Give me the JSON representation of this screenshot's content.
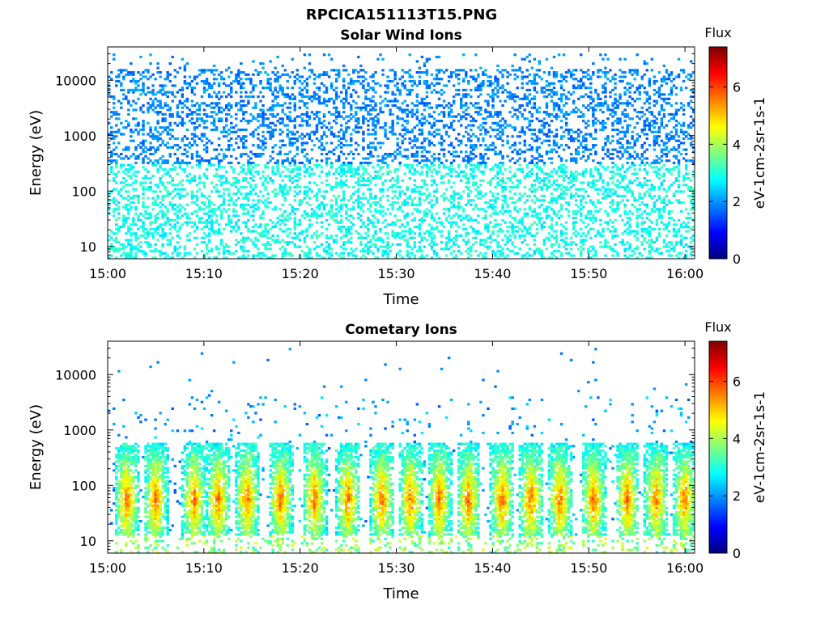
{
  "figure": {
    "title": "RPCICA151113T15.PNG"
  },
  "chart_data": [
    {
      "type": "heatmap",
      "title": "Solar Wind Ions",
      "xlabel": "Time",
      "ylabel": "Energy (eV)",
      "x_ticks": [
        "15:00",
        "15:10",
        "15:20",
        "15:30",
        "15:40",
        "15:50",
        "16:00"
      ],
      "x_range": [
        "15:00",
        "16:01"
      ],
      "y_scale": "log",
      "y_ticks": [
        10,
        100,
        1000,
        10000
      ],
      "y_tick_labels": [
        "10",
        "100",
        "1000",
        "10000"
      ],
      "y_range": [
        6,
        40000
      ],
      "colorbar": {
        "title": "Flux",
        "label": "eV-1cm-2sr-1s-1",
        "range": [
          0,
          7.4
        ],
        "ticks": [
          0,
          2,
          4,
          6
        ],
        "tick_labels": [
          "0",
          "2",
          "4",
          "6"
        ]
      },
      "description_profile": {
        "low_energy_band_eV": [
          6,
          300
        ],
        "low_energy_flux": [
          2.5,
          3.3
        ],
        "high_energy_band_eV": [
          300,
          30000
        ],
        "high_energy_flux": [
          1.5,
          2.3
        ]
      }
    },
    {
      "type": "heatmap",
      "title": "Cometary Ions",
      "xlabel": "Time",
      "ylabel": "Energy (eV)",
      "x_ticks": [
        "15:00",
        "15:10",
        "15:20",
        "15:30",
        "15:40",
        "15:50",
        "16:00"
      ],
      "x_range": [
        "15:00",
        "16:01"
      ],
      "y_scale": "log",
      "y_ticks": [
        10,
        100,
        1000,
        10000
      ],
      "y_tick_labels": [
        "10",
        "100",
        "1000",
        "10000"
      ],
      "y_range": [
        6,
        40000
      ],
      "colorbar": {
        "title": "Flux",
        "label": "eV-1cm-2sr-1s-1",
        "range": [
          0,
          7.4
        ],
        "ticks": [
          0,
          2,
          4,
          6
        ],
        "tick_labels": [
          "0",
          "2",
          "4",
          "6"
        ]
      },
      "bursts_min": [
        2,
        5,
        9,
        11.5,
        14.5,
        18,
        21.5,
        25,
        28.5,
        31.5,
        34.5,
        37.5,
        41,
        44,
        47,
        50.5,
        54,
        57,
        60
      ],
      "peak_energy_eV": [
        20,
        300
      ],
      "peak_flux": 5.5
    }
  ]
}
